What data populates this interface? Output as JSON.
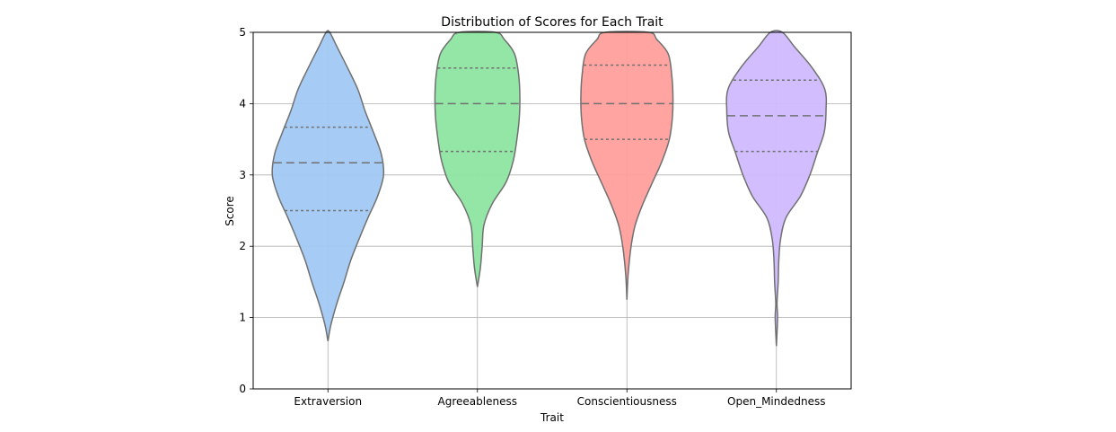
{
  "chart_data": {
    "type": "violin",
    "title": "Distribution of Scores for Each Trait",
    "xlabel": "Trait",
    "ylabel": "Score",
    "ylim": [
      0,
      5
    ],
    "yticks": [
      0,
      1,
      2,
      3,
      4,
      5
    ],
    "grid": true,
    "categories": [
      "Extraversion",
      "Agreeableness",
      "Conscientiousness",
      "Open_Mindedness"
    ],
    "series": [
      {
        "category": "Extraversion",
        "color": "#a1c9f4",
        "min": 0.67,
        "max": 5.0,
        "quartiles": [
          2.5,
          3.17,
          3.67
        ],
        "profile": [
          [
            0.67,
            0.0
          ],
          [
            0.9,
            0.05
          ],
          [
            1.2,
            0.15
          ],
          [
            1.5,
            0.27
          ],
          [
            1.8,
            0.38
          ],
          [
            2.1,
            0.52
          ],
          [
            2.4,
            0.67
          ],
          [
            2.7,
            0.83
          ],
          [
            3.0,
            0.93
          ],
          [
            3.3,
            0.89
          ],
          [
            3.6,
            0.76
          ],
          [
            3.9,
            0.62
          ],
          [
            4.2,
            0.5
          ],
          [
            4.5,
            0.33
          ],
          [
            4.8,
            0.15
          ],
          [
            5.0,
            0.03
          ]
        ]
      },
      {
        "category": "Agreeableness",
        "color": "#8de5a1",
        "min": 1.43,
        "max": 5.0,
        "quartiles": [
          3.33,
          4.0,
          4.5
        ],
        "profile": [
          [
            1.43,
            0.0
          ],
          [
            1.7,
            0.05
          ],
          [
            2.0,
            0.08
          ],
          [
            2.3,
            0.11
          ],
          [
            2.6,
            0.25
          ],
          [
            2.9,
            0.48
          ],
          [
            3.2,
            0.6
          ],
          [
            3.5,
            0.66
          ],
          [
            3.8,
            0.7
          ],
          [
            4.1,
            0.71
          ],
          [
            4.4,
            0.69
          ],
          [
            4.7,
            0.62
          ],
          [
            4.9,
            0.45
          ],
          [
            5.0,
            0.3
          ]
        ]
      },
      {
        "category": "Conscientiousness",
        "color": "#ff9f9b",
        "min": 1.25,
        "max": 5.0,
        "quartiles": [
          3.5,
          4.0,
          4.54
        ],
        "profile": [
          [
            1.25,
            0.0
          ],
          [
            1.6,
            0.02
          ],
          [
            2.0,
            0.07
          ],
          [
            2.3,
            0.14
          ],
          [
            2.6,
            0.27
          ],
          [
            2.9,
            0.43
          ],
          [
            3.2,
            0.59
          ],
          [
            3.5,
            0.71
          ],
          [
            3.8,
            0.76
          ],
          [
            4.1,
            0.77
          ],
          [
            4.4,
            0.75
          ],
          [
            4.7,
            0.69
          ],
          [
            4.9,
            0.5
          ],
          [
            5.0,
            0.36
          ]
        ]
      },
      {
        "category": "Open_Mindedness",
        "color": "#d0bbff",
        "min": 0.6,
        "max": 5.0,
        "quartiles": [
          3.33,
          3.83,
          4.33
        ],
        "profile": [
          [
            0.6,
            0.0
          ],
          [
            1.0,
            0.02
          ],
          [
            1.2,
            0.01
          ],
          [
            1.5,
            0.03
          ],
          [
            1.8,
            0.04
          ],
          [
            2.1,
            0.07
          ],
          [
            2.4,
            0.16
          ],
          [
            2.7,
            0.4
          ],
          [
            3.0,
            0.56
          ],
          [
            3.3,
            0.68
          ],
          [
            3.6,
            0.8
          ],
          [
            3.9,
            0.83
          ],
          [
            4.2,
            0.81
          ],
          [
            4.5,
            0.6
          ],
          [
            4.8,
            0.3
          ],
          [
            5.0,
            0.1
          ]
        ]
      }
    ]
  }
}
